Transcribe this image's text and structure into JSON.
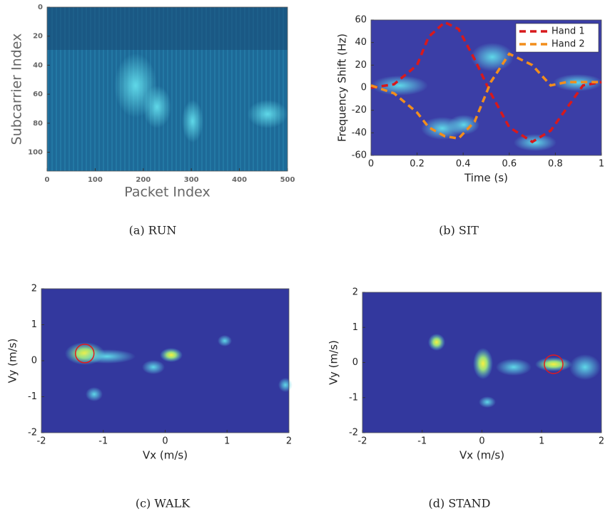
{
  "chart_data": [
    {
      "type": "heatmap",
      "xlabel": "Packet Index",
      "ylabel": "Subcarrier Index",
      "caption": "(a) RUN",
      "xlim": [
        0,
        500
      ],
      "ylim": [
        0,
        113
      ],
      "y_inverted": true,
      "xticks": [
        0,
        100,
        200,
        300,
        400,
        500
      ],
      "yticks": [
        0,
        20,
        40,
        60,
        80,
        100
      ]
    },
    {
      "type": "line",
      "xlabel": "Time (s)",
      "ylabel": "Frequency Shift (Hz)",
      "caption": "(b) SIT",
      "xlim": [
        0,
        1
      ],
      "ylim": [
        -60,
        60
      ],
      "xticks": [
        0,
        0.2,
        0.4,
        0.6,
        0.8,
        1
      ],
      "yticks": [
        -60,
        -40,
        -20,
        0,
        20,
        40,
        60
      ],
      "legend": "upper right",
      "x": [
        0,
        0.1,
        0.2,
        0.25,
        0.32,
        0.38,
        0.45,
        0.52,
        0.6,
        0.7,
        0.78,
        0.85,
        0.92,
        1
      ],
      "series": [
        {
          "name": "Hand 1",
          "color": "#d7191c",
          "values": [
            0,
            3,
            20,
            45,
            58,
            52,
            25,
            -5,
            -35,
            -48,
            -38,
            -18,
            2,
            5
          ]
        },
        {
          "name": "Hand 2",
          "color": "#f28e1c",
          "values": [
            2,
            -5,
            -22,
            -35,
            -43,
            -45,
            -30,
            5,
            30,
            20,
            2,
            5,
            5,
            5
          ]
        }
      ]
    },
    {
      "type": "heatmap",
      "xlabel": "Vx (m/s)",
      "ylabel": "Vy (m/s)",
      "caption": "(c) WALK",
      "xlim": [
        -2,
        2
      ],
      "ylim": [
        -2,
        2
      ],
      "xticks": [
        -2,
        -1,
        0,
        1,
        2
      ],
      "yticks": [
        -2,
        -1,
        0,
        1,
        2
      ],
      "markers": [
        {
          "x": -1.3,
          "y": 0.2,
          "color": "#e3191c"
        }
      ]
    },
    {
      "type": "heatmap",
      "xlabel": "Vx (m/s)",
      "ylabel": "Vy (m/s)",
      "caption": "(d) STAND",
      "xlim": [
        -2,
        2
      ],
      "ylim": [
        -2,
        2
      ],
      "xticks": [
        -2,
        -1,
        0,
        1,
        2
      ],
      "yticks": [
        -2,
        -1,
        0,
        1,
        2
      ],
      "markers": [
        {
          "x": 1.2,
          "y": -0.05,
          "color": "#e3191c"
        }
      ]
    }
  ]
}
